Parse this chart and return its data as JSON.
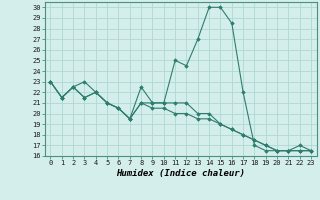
{
  "title": "",
  "xlabel": "Humidex (Indice chaleur)",
  "background_color": "#d4eeeb",
  "grid_color": "#b0d8d4",
  "line_color": "#2e7d6e",
  "ylim": [
    16,
    30.5
  ],
  "xlim": [
    -0.5,
    23.5
  ],
  "yticks": [
    16,
    17,
    18,
    19,
    20,
    21,
    22,
    23,
    24,
    25,
    26,
    27,
    28,
    29,
    30
  ],
  "xticks": [
    0,
    1,
    2,
    3,
    4,
    5,
    6,
    7,
    8,
    9,
    10,
    11,
    12,
    13,
    14,
    15,
    16,
    17,
    18,
    19,
    20,
    21,
    22,
    23
  ],
  "series": [
    {
      "x": [
        0,
        1,
        2,
        3,
        4,
        5,
        6,
        7,
        8,
        9,
        10,
        11,
        12,
        13,
        14,
        15,
        16,
        17,
        18,
        19,
        20,
        21,
        22,
        23
      ],
      "y": [
        23,
        21.5,
        22.5,
        23,
        22,
        21,
        20.5,
        19.5,
        22.5,
        21,
        21,
        25,
        24.5,
        27,
        30,
        30,
        28.5,
        22,
        17,
        16.5,
        16.5,
        16.5,
        17,
        16.5
      ]
    },
    {
      "x": [
        0,
        1,
        2,
        3,
        4,
        5,
        6,
        7,
        8,
        9,
        10,
        11,
        12,
        13,
        14,
        15,
        16,
        17,
        18,
        19,
        20,
        21,
        22,
        23
      ],
      "y": [
        23,
        21.5,
        22.5,
        21.5,
        22,
        21,
        20.5,
        19.5,
        21,
        21,
        21,
        21,
        21,
        20,
        20,
        19,
        18.5,
        18,
        17.5,
        17,
        16.5,
        16.5,
        16.5,
        16.5
      ]
    },
    {
      "x": [
        0,
        1,
        2,
        3,
        4,
        5,
        6,
        7,
        8,
        9,
        10,
        11,
        12,
        13,
        14,
        15,
        16,
        17,
        18,
        19,
        20,
        21,
        22,
        23
      ],
      "y": [
        23,
        21.5,
        22.5,
        21.5,
        22,
        21,
        20.5,
        19.5,
        21,
        20.5,
        20.5,
        20,
        20,
        19.5,
        19.5,
        19,
        18.5,
        18,
        17.5,
        17,
        16.5,
        16.5,
        16.5,
        16.5
      ]
    }
  ]
}
